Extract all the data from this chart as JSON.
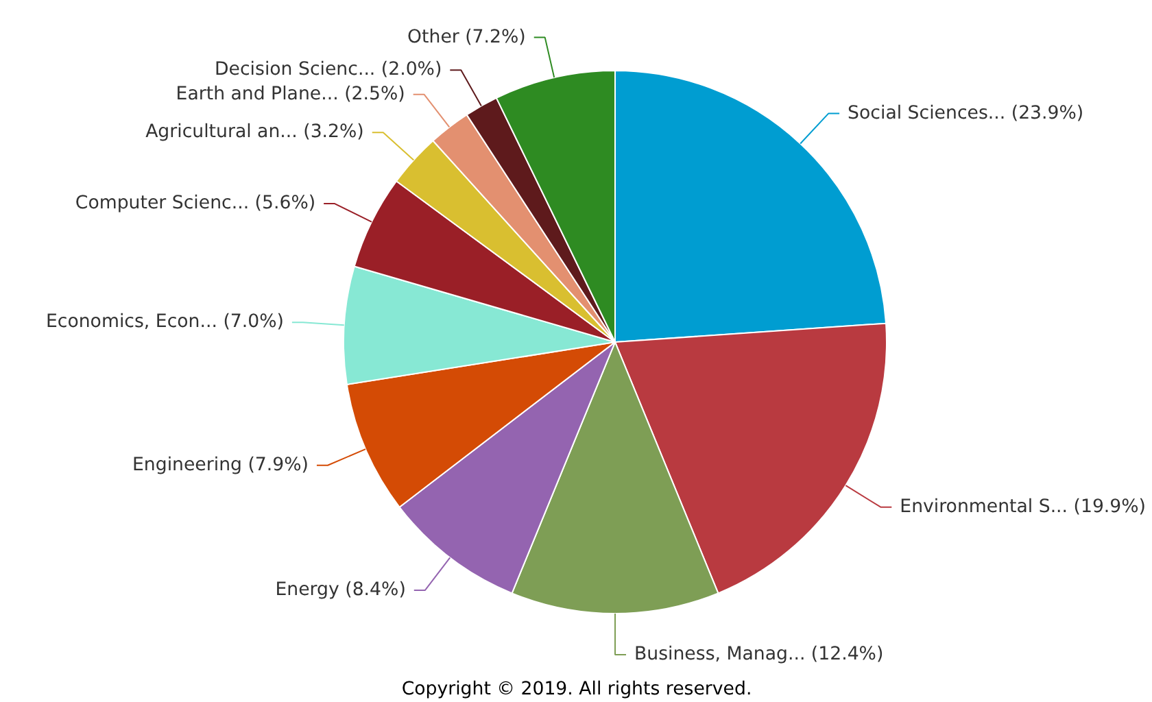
{
  "chart_data": {
    "type": "pie",
    "categories": [
      "Social Sciences... (23.9%)",
      "Environmental S... (19.9%)",
      "Business, Manag... (12.4%)",
      "Energy (8.4%)",
      "Engineering (7.9%)",
      "Economics, Econ... (7.0%)",
      "Computer Scienc... (5.6%)",
      "Agricultural an... (3.2%)",
      "Earth and Plane... (2.5%)",
      "Decision Scienc... (2.0%)",
      "Other (7.2%)"
    ],
    "values": [
      23.9,
      19.9,
      12.4,
      8.4,
      7.9,
      7.0,
      5.6,
      3.2,
      2.5,
      2.0,
      7.2
    ],
    "colors": [
      "#009dd1",
      "#b93a40",
      "#7e9e55",
      "#9464b0",
      "#d44b05",
      "#87e8d4",
      "#9a1f27",
      "#d9bf30",
      "#e39070",
      "#5e1a1c",
      "#2e8b22"
    ],
    "annotations": [
      "Copyright © 2019. All rights reserved."
    ]
  }
}
